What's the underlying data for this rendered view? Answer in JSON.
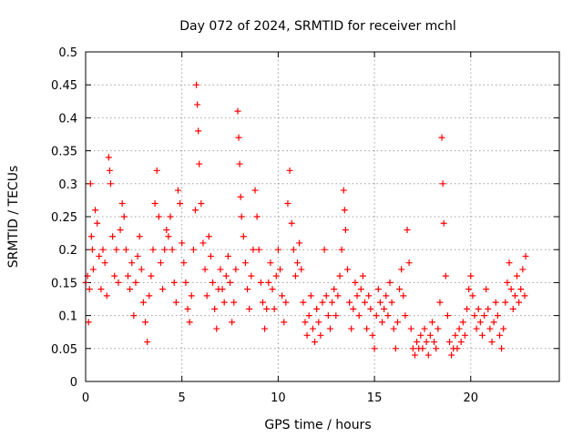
{
  "chart_data": {
    "type": "scatter",
    "title": "Day 072 of 2024, SRMTID for receiver mchl",
    "xlabel": "GPS time / hours",
    "ylabel": "SRMTID / TECUs",
    "xlim": [
      0,
      24.6
    ],
    "ylim": [
      0,
      0.5
    ],
    "x_ticks": [
      0,
      5,
      10,
      15,
      20
    ],
    "x_tick_labels": [
      "0",
      "5",
      "10",
      "15",
      "20"
    ],
    "y_ticks": [
      0,
      0.05,
      0.1,
      0.15,
      0.2,
      0.25,
      0.3,
      0.35,
      0.4,
      0.45,
      0.5
    ],
    "y_tick_labels": [
      "0",
      "0.05",
      "0.1",
      "0.15",
      "0.2",
      "0.25",
      "0.3",
      "0.35",
      "0.4",
      "0.45",
      "0.5"
    ],
    "grid": true,
    "marker": "plus",
    "series": [
      {
        "name": "SRMTID",
        "color": "#ff0000",
        "points": [
          [
            0.0,
            0.15
          ],
          [
            0.1,
            0.16
          ],
          [
            0.15,
            0.09
          ],
          [
            0.2,
            0.14
          ],
          [
            0.25,
            0.3
          ],
          [
            0.3,
            0.22
          ],
          [
            0.35,
            0.2
          ],
          [
            0.4,
            0.17
          ],
          [
            0.5,
            0.26
          ],
          [
            0.6,
            0.24
          ],
          [
            0.7,
            0.19
          ],
          [
            0.8,
            0.14
          ],
          [
            0.9,
            0.2
          ],
          [
            1.0,
            0.18
          ],
          [
            1.1,
            0.13
          ],
          [
            1.2,
            0.34
          ],
          [
            1.25,
            0.32
          ],
          [
            1.3,
            0.3
          ],
          [
            1.4,
            0.22
          ],
          [
            1.5,
            0.16
          ],
          [
            1.6,
            0.2
          ],
          [
            1.7,
            0.15
          ],
          [
            1.8,
            0.23
          ],
          [
            1.9,
            0.27
          ],
          [
            2.0,
            0.25
          ],
          [
            2.1,
            0.2
          ],
          [
            2.2,
            0.16
          ],
          [
            2.3,
            0.14
          ],
          [
            2.4,
            0.18
          ],
          [
            2.5,
            0.1
          ],
          [
            2.6,
            0.15
          ],
          [
            2.7,
            0.19
          ],
          [
            2.8,
            0.22
          ],
          [
            2.9,
            0.17
          ],
          [
            3.0,
            0.12
          ],
          [
            3.1,
            0.09
          ],
          [
            3.2,
            0.06
          ],
          [
            3.3,
            0.13
          ],
          [
            3.4,
            0.16
          ],
          [
            3.5,
            0.2
          ],
          [
            3.6,
            0.27
          ],
          [
            3.7,
            0.32
          ],
          [
            3.8,
            0.25
          ],
          [
            3.9,
            0.18
          ],
          [
            4.0,
            0.14
          ],
          [
            4.1,
            0.2
          ],
          [
            4.2,
            0.23
          ],
          [
            4.3,
            0.22
          ],
          [
            4.4,
            0.25
          ],
          [
            4.5,
            0.2
          ],
          [
            4.6,
            0.15
          ],
          [
            4.7,
            0.12
          ],
          [
            4.8,
            0.29
          ],
          [
            4.9,
            0.27
          ],
          [
            5.0,
            0.21
          ],
          [
            5.1,
            0.18
          ],
          [
            5.2,
            0.15
          ],
          [
            5.3,
            0.11
          ],
          [
            5.4,
            0.09
          ],
          [
            5.5,
            0.13
          ],
          [
            5.6,
            0.2
          ],
          [
            5.7,
            0.26
          ],
          [
            5.75,
            0.45
          ],
          [
            5.8,
            0.42
          ],
          [
            5.85,
            0.38
          ],
          [
            5.9,
            0.33
          ],
          [
            6.0,
            0.27
          ],
          [
            6.1,
            0.21
          ],
          [
            6.2,
            0.17
          ],
          [
            6.3,
            0.13
          ],
          [
            6.4,
            0.22
          ],
          [
            6.5,
            0.19
          ],
          [
            6.6,
            0.15
          ],
          [
            6.7,
            0.11
          ],
          [
            6.8,
            0.08
          ],
          [
            6.9,
            0.14
          ],
          [
            7.0,
            0.17
          ],
          [
            7.1,
            0.14
          ],
          [
            7.2,
            0.12
          ],
          [
            7.3,
            0.16
          ],
          [
            7.4,
            0.19
          ],
          [
            7.5,
            0.15
          ],
          [
            7.6,
            0.09
          ],
          [
            7.7,
            0.12
          ],
          [
            7.8,
            0.17
          ],
          [
            7.9,
            0.41
          ],
          [
            7.95,
            0.37
          ],
          [
            8.0,
            0.33
          ],
          [
            8.05,
            0.28
          ],
          [
            8.1,
            0.25
          ],
          [
            8.2,
            0.22
          ],
          [
            8.3,
            0.18
          ],
          [
            8.4,
            0.14
          ],
          [
            8.5,
            0.11
          ],
          [
            8.6,
            0.16
          ],
          [
            8.7,
            0.2
          ],
          [
            8.8,
            0.29
          ],
          [
            8.9,
            0.25
          ],
          [
            9.0,
            0.2
          ],
          [
            9.1,
            0.15
          ],
          [
            9.2,
            0.12
          ],
          [
            9.3,
            0.08
          ],
          [
            9.4,
            0.11
          ],
          [
            9.5,
            0.15
          ],
          [
            9.6,
            0.18
          ],
          [
            9.7,
            0.14
          ],
          [
            9.8,
            0.11
          ],
          [
            9.9,
            0.16
          ],
          [
            10.0,
            0.2
          ],
          [
            10.1,
            0.17
          ],
          [
            10.2,
            0.13
          ],
          [
            10.3,
            0.09
          ],
          [
            10.4,
            0.12
          ],
          [
            10.5,
            0.27
          ],
          [
            10.6,
            0.32
          ],
          [
            10.7,
            0.24
          ],
          [
            10.8,
            0.2
          ],
          [
            10.9,
            0.16
          ],
          [
            11.0,
            0.18
          ],
          [
            11.1,
            0.21
          ],
          [
            11.2,
            0.17
          ],
          [
            11.3,
            0.12
          ],
          [
            11.4,
            0.09
          ],
          [
            11.5,
            0.07
          ],
          [
            11.6,
            0.1
          ],
          [
            11.7,
            0.13
          ],
          [
            11.8,
            0.08
          ],
          [
            11.9,
            0.06
          ],
          [
            12.0,
            0.11
          ],
          [
            12.1,
            0.09
          ],
          [
            12.2,
            0.07
          ],
          [
            12.3,
            0.12
          ],
          [
            12.4,
            0.2
          ],
          [
            12.5,
            0.13
          ],
          [
            12.6,
            0.1
          ],
          [
            12.7,
            0.08
          ],
          [
            12.8,
            0.12
          ],
          [
            12.9,
            0.14
          ],
          [
            13.0,
            0.1
          ],
          [
            13.1,
            0.13
          ],
          [
            13.2,
            0.16
          ],
          [
            13.3,
            0.2
          ],
          [
            13.4,
            0.29
          ],
          [
            13.45,
            0.26
          ],
          [
            13.5,
            0.23
          ],
          [
            13.6,
            0.17
          ],
          [
            13.7,
            0.12
          ],
          [
            13.8,
            0.08
          ],
          [
            13.9,
            0.11
          ],
          [
            14.0,
            0.15
          ],
          [
            14.1,
            0.13
          ],
          [
            14.2,
            0.1
          ],
          [
            14.3,
            0.14
          ],
          [
            14.4,
            0.16
          ],
          [
            14.5,
            0.12
          ],
          [
            14.6,
            0.08
          ],
          [
            14.7,
            0.13
          ],
          [
            14.8,
            0.11
          ],
          [
            14.9,
            0.07
          ],
          [
            15.0,
            0.05
          ],
          [
            15.1,
            0.1
          ],
          [
            15.2,
            0.14
          ],
          [
            15.3,
            0.12
          ],
          [
            15.4,
            0.09
          ],
          [
            15.5,
            0.11
          ],
          [
            15.6,
            0.13
          ],
          [
            15.7,
            0.1
          ],
          [
            15.8,
            0.15
          ],
          [
            15.9,
            0.12
          ],
          [
            16.0,
            0.08
          ],
          [
            16.1,
            0.05
          ],
          [
            16.2,
            0.09
          ],
          [
            16.3,
            0.14
          ],
          [
            16.4,
            0.17
          ],
          [
            16.5,
            0.13
          ],
          [
            16.6,
            0.1
          ],
          [
            16.7,
            0.23
          ],
          [
            16.8,
            0.18
          ],
          [
            16.9,
            0.08
          ],
          [
            17.0,
            0.05
          ],
          [
            17.1,
            0.04
          ],
          [
            17.2,
            0.06
          ],
          [
            17.3,
            0.05
          ],
          [
            17.4,
            0.07
          ],
          [
            17.5,
            0.05
          ],
          [
            17.6,
            0.08
          ],
          [
            17.7,
            0.06
          ],
          [
            17.8,
            0.04
          ],
          [
            17.9,
            0.07
          ],
          [
            18.0,
            0.09
          ],
          [
            18.1,
            0.06
          ],
          [
            18.2,
            0.05
          ],
          [
            18.3,
            0.08
          ],
          [
            18.4,
            0.12
          ],
          [
            18.5,
            0.37
          ],
          [
            18.55,
            0.3
          ],
          [
            18.6,
            0.24
          ],
          [
            18.7,
            0.16
          ],
          [
            18.8,
            0.1
          ],
          [
            18.9,
            0.06
          ],
          [
            19.0,
            0.04
          ],
          [
            19.1,
            0.05
          ],
          [
            19.2,
            0.07
          ],
          [
            19.3,
            0.05
          ],
          [
            19.4,
            0.08
          ],
          [
            19.5,
            0.06
          ],
          [
            19.6,
            0.09
          ],
          [
            19.7,
            0.07
          ],
          [
            19.8,
            0.11
          ],
          [
            19.9,
            0.14
          ],
          [
            20.0,
            0.16
          ],
          [
            20.1,
            0.13
          ],
          [
            20.2,
            0.1
          ],
          [
            20.3,
            0.08
          ],
          [
            20.4,
            0.11
          ],
          [
            20.5,
            0.09
          ],
          [
            20.6,
            0.07
          ],
          [
            20.7,
            0.1
          ],
          [
            20.8,
            0.14
          ],
          [
            20.9,
            0.11
          ],
          [
            21.0,
            0.08
          ],
          [
            21.1,
            0.06
          ],
          [
            21.2,
            0.09
          ],
          [
            21.3,
            0.12
          ],
          [
            21.4,
            0.1
          ],
          [
            21.5,
            0.07
          ],
          [
            21.6,
            0.05
          ],
          [
            21.7,
            0.08
          ],
          [
            21.8,
            0.12
          ],
          [
            21.9,
            0.15
          ],
          [
            22.0,
            0.18
          ],
          [
            22.1,
            0.14
          ],
          [
            22.2,
            0.11
          ],
          [
            22.3,
            0.13
          ],
          [
            22.4,
            0.16
          ],
          [
            22.5,
            0.12
          ],
          [
            22.6,
            0.14
          ],
          [
            22.7,
            0.17
          ],
          [
            22.8,
            0.13
          ],
          [
            22.85,
            0.19
          ]
        ]
      }
    ]
  }
}
